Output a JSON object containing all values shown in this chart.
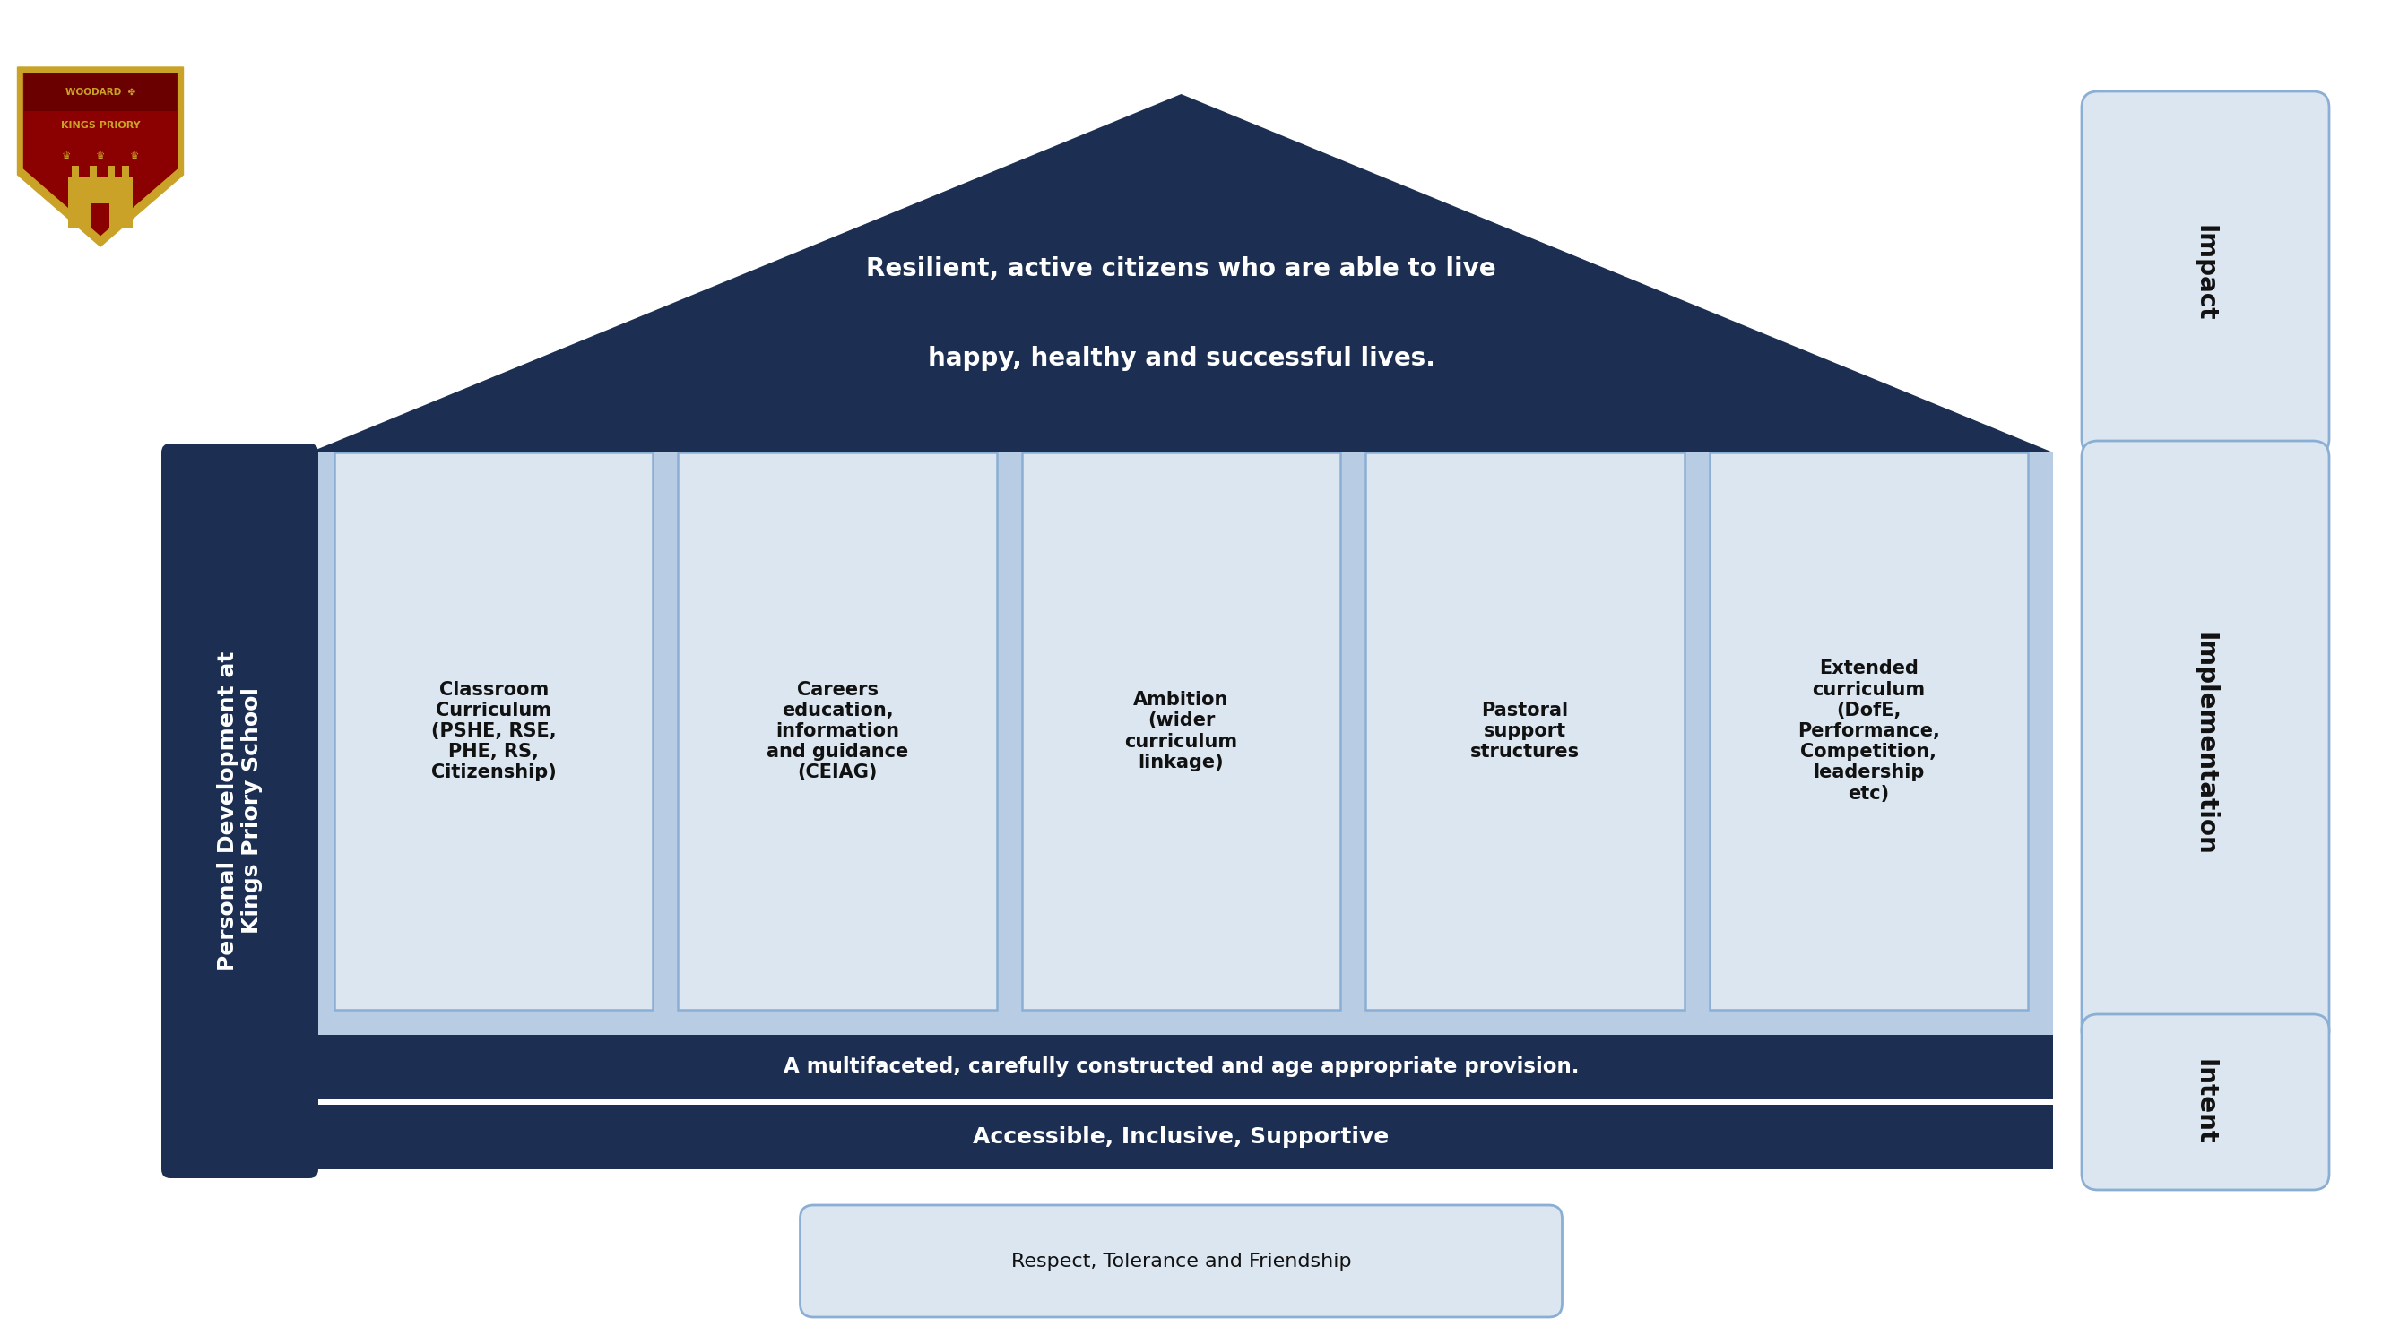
{
  "bg_color": "#ffffff",
  "dark_navy": "#1c2f52",
  "light_blue": "#b8cce4",
  "lighter_blue": "#dce6f1",
  "sidebar_label": "Personal Development at\nKings Priory School",
  "roof_text": "Resilient, active citizens who are able to live\n\nhappy, healthy and successful lives.",
  "bar1_text": "A multifaceted, carefully constructed and age appropriate provision.",
  "bar2_text": "Accessible, Inclusive, Supportive",
  "bottom_box_text": "Respect, Tolerance and Friendship",
  "right_labels": [
    "Impact",
    "Implementation",
    "Intent"
  ],
  "columns": [
    "Classroom\nCurriculum\n(PSHE, RSE,\nPHE, RS,\nCitizenship)",
    "Careers\neducation,\ninformation\nand guidance\n(CEIAG)",
    "Ambition\n(wider\ncurriculum\nlinkage)",
    "Pastoral\nsupport\nstructures",
    "Extended\ncurriculum\n(DofE,\nPerformance,\nCompetition,\nleadership\netc)"
  ],
  "fig_w": 26.67,
  "fig_h": 15.0,
  "xlim": [
    0,
    26.67
  ],
  "ylim": [
    0,
    15.0
  ]
}
